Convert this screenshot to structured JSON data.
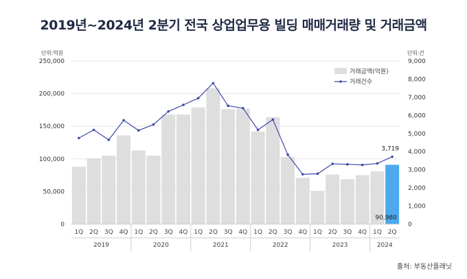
{
  "title": "2019년~2024년 2분기 전국 상업업무용 빌딩 매매거래량 및 거래금액",
  "unit_left": "단위:억원",
  "unit_right": "단위:건",
  "source": "출처: 부동산플래닛",
  "colors": {
    "bar": "#dedede",
    "highlight_bar": "#4ba9ec",
    "line": "#3f4aa6",
    "grid": "#e6e6e6",
    "title": "#1f2a44"
  },
  "chart_data": {
    "type": "bar",
    "categories": [
      "1Q",
      "2Q",
      "3Q",
      "4Q",
      "1Q",
      "2Q",
      "3Q",
      "4Q",
      "1Q",
      "2Q",
      "3Q",
      "4Q",
      "1Q",
      "2Q",
      "3Q",
      "4Q",
      "1Q",
      "2Q",
      "3Q",
      "4Q",
      "1Q",
      "2Q"
    ],
    "year_groups": [
      {
        "label": "2019",
        "count": 4
      },
      {
        "label": "2020",
        "count": 4
      },
      {
        "label": "2021",
        "count": 4
      },
      {
        "label": "2022",
        "count": 4
      },
      {
        "label": "2023",
        "count": 4
      },
      {
        "label": "2024",
        "count": 2
      }
    ],
    "series": [
      {
        "name": "거래금액(억원)",
        "type": "bar",
        "axis": "left",
        "values": [
          88000,
          101000,
          105000,
          136000,
          113000,
          105000,
          168000,
          168000,
          179000,
          208000,
          176000,
          177000,
          142000,
          164000,
          103000,
          71000,
          51000,
          76000,
          69000,
          75000,
          81000,
          90980
        ]
      },
      {
        "name": "거래건수",
        "type": "line",
        "axis": "right",
        "values": [
          4750,
          5200,
          4650,
          5730,
          5170,
          5500,
          6220,
          6580,
          6950,
          7780,
          6530,
          6400,
          5200,
          5770,
          3830,
          2750,
          2780,
          3330,
          3300,
          3270,
          3350,
          3719
        ]
      }
    ],
    "y_left": {
      "min": 0,
      "max": 250000,
      "ticks": [
        "0",
        "50,000",
        "100,000",
        "150,000",
        "200,000",
        "250,000"
      ]
    },
    "y_right": {
      "min": 0,
      "max": 9000,
      "ticks": [
        "0",
        "1,000",
        "2,000",
        "3,000",
        "4,000",
        "5,000",
        "6,000",
        "7,000",
        "8,000",
        "9,000"
      ]
    },
    "annotations": {
      "last_bar": "90,980",
      "last_line": "3,719"
    },
    "legend_position": "top-right",
    "grid": true
  }
}
